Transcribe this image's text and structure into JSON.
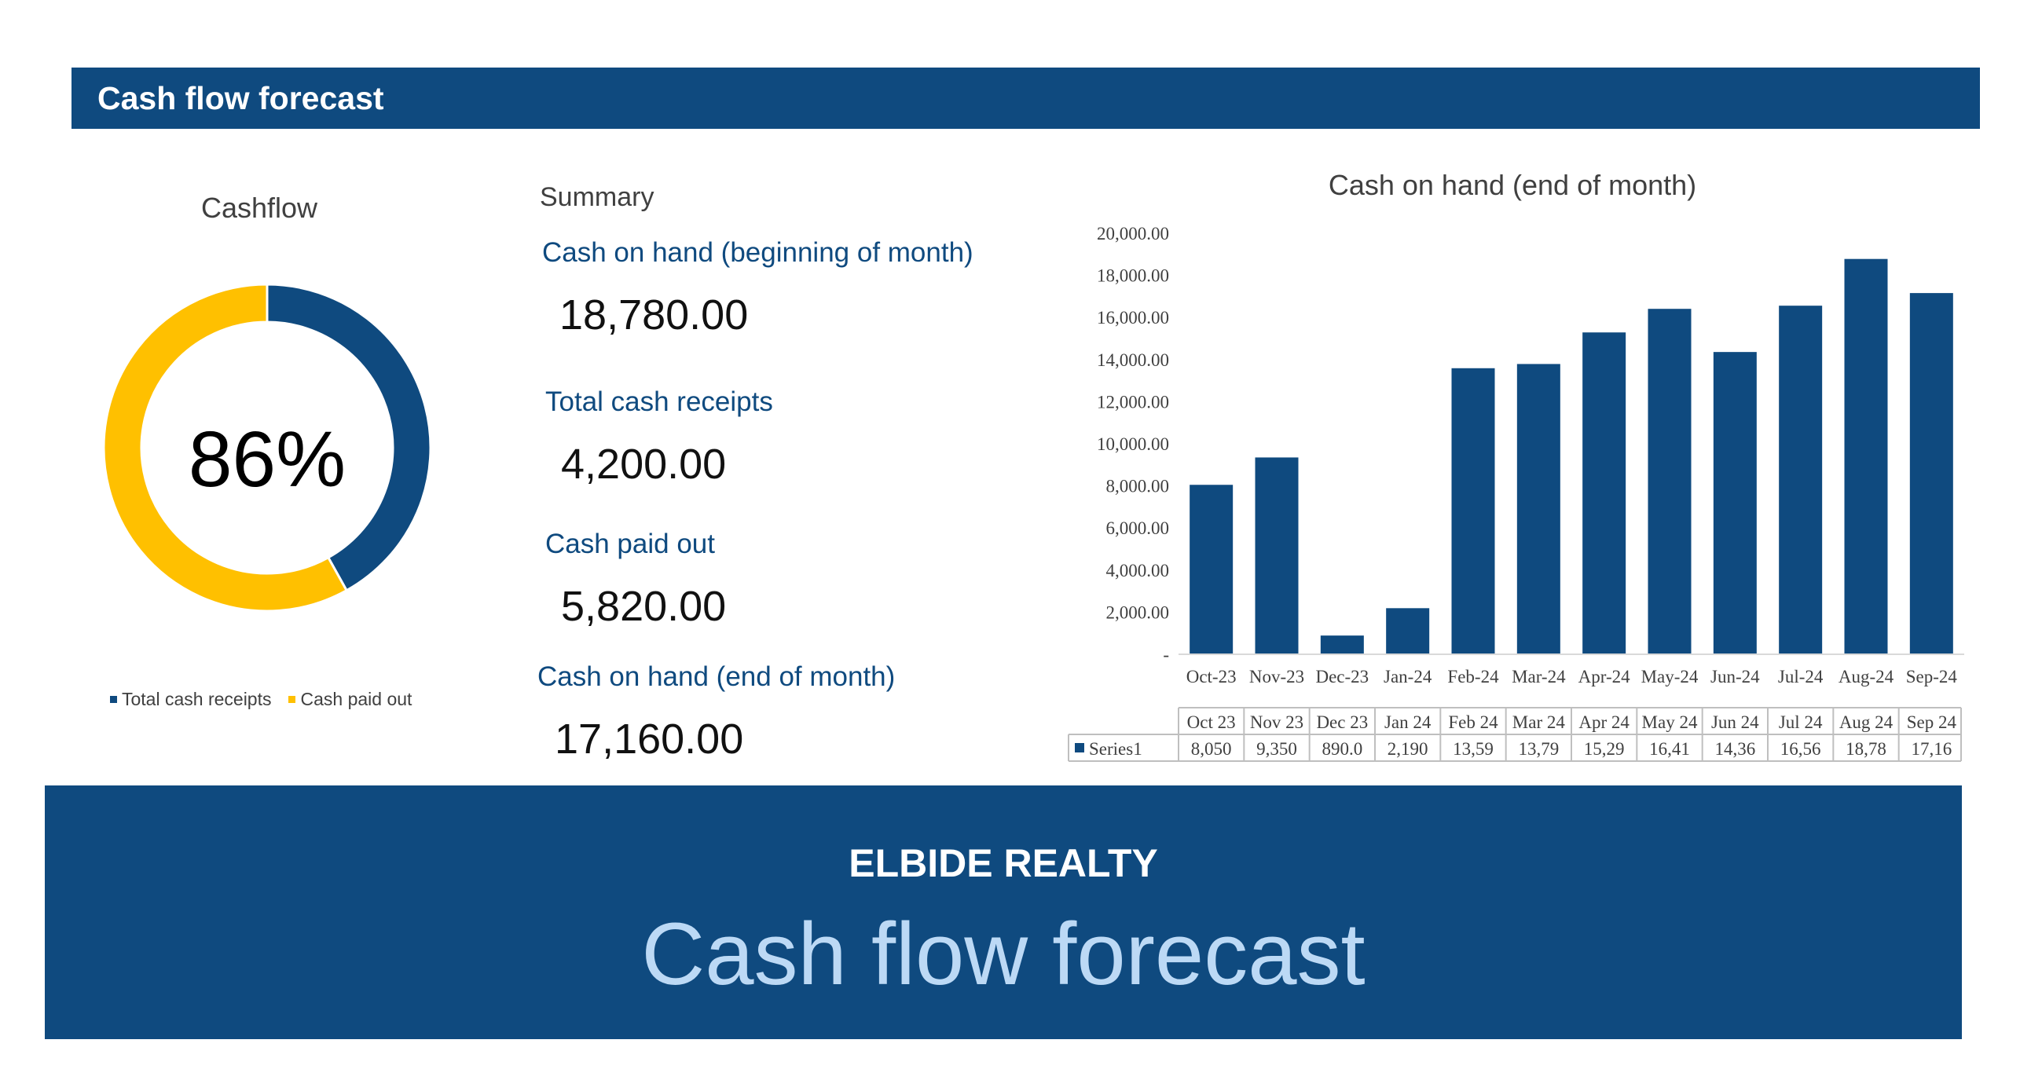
{
  "header": {
    "title": "Cash flow forecast"
  },
  "donut": {
    "title": "Cashflow",
    "center_label": "86%",
    "colors": {
      "receipts": "#0f4a7f",
      "paid_out": "#ffc000"
    },
    "legend": [
      {
        "label": "Total cash receipts",
        "color": "#0f4a7f"
      },
      {
        "label": "Cash paid out",
        "color": "#ffc000"
      }
    ]
  },
  "summary": {
    "title": "Summary",
    "items": [
      {
        "label": "Cash on hand (beginning of month)",
        "value": "18,780.00"
      },
      {
        "label": "Total cash receipts",
        "value": "4,200.00"
      },
      {
        "label": "Cash paid out",
        "value": "5,820.00"
      },
      {
        "label": "Cash on hand (end of month)",
        "value": "17,160.00"
      }
    ]
  },
  "chart_data": [
    {
      "type": "pie",
      "title": "Cashflow",
      "labels": [
        "Total cash receipts",
        "Cash paid out"
      ],
      "values": [
        4200,
        5820
      ],
      "colors": [
        "#0f4a7f",
        "#ffc000"
      ],
      "legend": "bottom"
    },
    {
      "type": "bar",
      "title": "Cash on hand (end of month)",
      "categories": [
        "Oct-23",
        "Nov-23",
        "Dec-23",
        "Jan-24",
        "Feb-24",
        "Mar-24",
        "Apr-24",
        "May-24",
        "Jun-24",
        "Jul-24",
        "Aug-24",
        "Sep-24"
      ],
      "series": [
        {
          "name": "Series1",
          "values": [
            8050,
            9350,
            890,
            2190,
            13590,
            13790,
            15290,
            16410,
            14360,
            16560,
            18780,
            17160
          ]
        }
      ],
      "ylim": [
        0,
        20000
      ],
      "yticks": [
        "-",
        "2,000.00",
        "4,000.00",
        "6,000.00",
        "8,000.00",
        "10,000.00",
        "12,000.00",
        "14,000.00",
        "16,000.00",
        "18,000.00",
        "20,000.00"
      ],
      "data_table": {
        "headers": [
          "Oct 23",
          "Nov 23",
          "Dec 23",
          "Jan 24",
          "Feb 24",
          "Mar 24",
          "Apr 24",
          "May 24",
          "Jun 24",
          "Jul 24",
          "Aug 24",
          "Sep 24"
        ],
        "values": [
          "8,050",
          "9,350",
          "890.0",
          "2,190",
          "13,59",
          "13,79",
          "15,29",
          "16,41",
          "14,36",
          "16,56",
          "18,78",
          "17,16"
        ]
      },
      "bar_color": "#0f4a7f",
      "grid": false
    }
  ],
  "footer": {
    "company": "ELBIDE REALTY",
    "title": "Cash flow forecast"
  }
}
